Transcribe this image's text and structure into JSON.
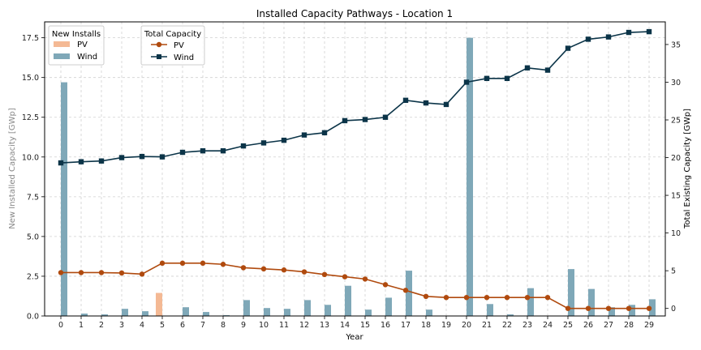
{
  "chart_data": {
    "type": "bar+line",
    "title": "Installed Capacity Pathways - Location 1",
    "xlabel": "Year",
    "ylabel_left": "New Installed Capacity [GWp]",
    "ylabel_right": "Total Existing Capacity [GWp]",
    "x": [
      0,
      1,
      2,
      3,
      4,
      5,
      6,
      7,
      8,
      9,
      10,
      11,
      12,
      13,
      14,
      15,
      16,
      17,
      18,
      19,
      20,
      21,
      22,
      23,
      24,
      25,
      26,
      27,
      28,
      29
    ],
    "ylim_left": [
      0,
      18.5
    ],
    "yticks_left": [
      "0.0",
      "2.5",
      "5.0",
      "7.5",
      "10.0",
      "12.5",
      "15.0",
      "17.5"
    ],
    "ylim_right": [
      -1.0,
      38.0
    ],
    "yticks_right": [
      "0",
      "5",
      "10",
      "15",
      "20",
      "25",
      "30",
      "35"
    ],
    "grid": true,
    "legend_bars": {
      "title": "New Installs",
      "placement": "top-left",
      "entries": [
        {
          "label": "PV",
          "color": "#f4b994"
        },
        {
          "label": "Wind",
          "color": "#7fa8b8"
        }
      ]
    },
    "legend_lines": {
      "title": "Total Capacity",
      "placement": "top-left",
      "entries": [
        {
          "label": "PV",
          "color": "#b04a0e",
          "marker": "circle"
        },
        {
          "label": "Wind",
          "color": "#0b3448",
          "marker": "square"
        }
      ]
    },
    "bar_series": [
      {
        "name": "PV",
        "axis": "left",
        "color": "#f4b994",
        "values": [
          0,
          0,
          0,
          0,
          0,
          1.45,
          0,
          0,
          0,
          0,
          0,
          0,
          0,
          0,
          0,
          0,
          0,
          0,
          0,
          0,
          0,
          0,
          0,
          0,
          0,
          0,
          0,
          0,
          0,
          0
        ]
      },
      {
        "name": "Wind",
        "axis": "left",
        "color": "#7fa8b8",
        "values": [
          14.7,
          0.15,
          0.1,
          0.45,
          0.3,
          0,
          0.55,
          0.25,
          0.05,
          1.0,
          0.5,
          0.45,
          1.0,
          0.7,
          1.9,
          0.4,
          1.15,
          2.85,
          0.4,
          0,
          17.5,
          0.75,
          0.1,
          1.75,
          0,
          2.95,
          1.7,
          0.55,
          0.7,
          1.05
        ]
      }
    ],
    "line_series": [
      {
        "name": "PV",
        "axis": "right",
        "color": "#b04a0e",
        "marker": "circle",
        "values": [
          4.75,
          4.75,
          4.75,
          4.7,
          4.55,
          6.0,
          6.0,
          6.0,
          5.85,
          5.4,
          5.25,
          5.1,
          4.85,
          4.5,
          4.2,
          3.9,
          3.15,
          2.4,
          1.6,
          1.45,
          1.45,
          1.45,
          1.45,
          1.45,
          1.45,
          0.0,
          0.0,
          0.0,
          0.0,
          0.0
        ]
      },
      {
        "name": "Wind",
        "axis": "right",
        "color": "#0b3448",
        "marker": "square",
        "values": [
          19.3,
          19.45,
          19.55,
          20.0,
          20.15,
          20.1,
          20.7,
          20.9,
          20.9,
          21.55,
          21.95,
          22.3,
          23.0,
          23.3,
          24.9,
          25.05,
          25.35,
          27.6,
          27.25,
          27.05,
          30.0,
          30.5,
          30.5,
          31.9,
          31.6,
          34.5,
          35.7,
          36.0,
          36.6,
          36.7
        ]
      }
    ]
  }
}
